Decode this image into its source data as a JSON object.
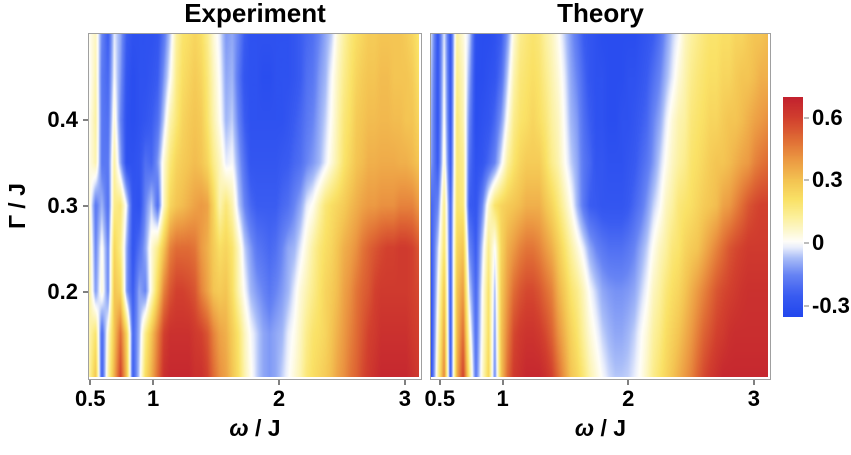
{
  "figure": {
    "background": "#ffffff",
    "frame_color": "#a0a0a0",
    "tick_color": "#808080",
    "text_color": "#000000"
  },
  "labels": {
    "y": {
      "symbol": "Γ",
      "divider": " / ",
      "unit": "J"
    },
    "x": {
      "symbol": "ω",
      "divider": " / ",
      "unit": "J"
    }
  },
  "chart_data": [
    {
      "type": "heatmap",
      "title": "Experiment",
      "xlabel": "ω / J",
      "ylabel": "Γ / J",
      "x_range": [
        0.49,
        3.12
      ],
      "y_range": [
        0.1,
        0.5
      ],
      "x_ticks": {
        "values": [
          0.5,
          1,
          2,
          3
        ],
        "labels": [
          "0.5",
          "1",
          "2",
          "3"
        ]
      },
      "y_ticks": {
        "values": [
          0.4,
          0.3,
          0.2
        ],
        "labels": [
          "0.4",
          "0.3",
          "0.2"
        ]
      },
      "rows_gamma": [
        0.5,
        0.45,
        0.4,
        0.35,
        0.3,
        0.25,
        0.2,
        0.15,
        0.1
      ],
      "values": [
        [
          0.02,
          0.08,
          -0.15,
          -0.25,
          -0.02,
          -0.1,
          -0.25,
          -0.3,
          -0.3,
          -0.3,
          -0.3,
          -0.28,
          -0.18,
          -0.05,
          0.12,
          0.2,
          0.22,
          0.25,
          0.22,
          0.15,
          0.05,
          -0.02,
          -0.12,
          -0.1,
          -0.15,
          -0.25,
          -0.3,
          -0.3,
          -0.3,
          -0.3,
          -0.3,
          -0.3,
          -0.3,
          -0.28,
          -0.25,
          -0.22,
          -0.2,
          -0.15,
          -0.1,
          -0.05,
          0.05,
          0.12,
          0.18,
          0.22,
          0.25,
          0.28,
          0.28,
          0.3,
          0.3,
          0.3,
          0.3,
          0.28,
          0.25,
          0.2
        ],
        [
          0.0,
          0.1,
          -0.18,
          -0.22,
          0.0,
          -0.12,
          -0.28,
          -0.32,
          -0.3,
          -0.3,
          -0.28,
          -0.25,
          -0.12,
          0.0,
          0.15,
          0.22,
          0.25,
          0.28,
          0.25,
          0.18,
          0.08,
          0.0,
          -0.1,
          -0.08,
          -0.18,
          -0.28,
          -0.3,
          -0.3,
          -0.32,
          -0.32,
          -0.3,
          -0.3,
          -0.3,
          -0.28,
          -0.25,
          -0.2,
          -0.18,
          -0.12,
          -0.08,
          0.0,
          0.08,
          0.15,
          0.2,
          0.25,
          0.28,
          0.3,
          0.3,
          0.32,
          0.32,
          0.3,
          0.3,
          0.3,
          0.28,
          0.22
        ],
        [
          0.02,
          0.12,
          -0.18,
          -0.2,
          0.05,
          -0.15,
          -0.3,
          -0.32,
          -0.3,
          -0.28,
          -0.25,
          -0.2,
          -0.05,
          0.1,
          0.18,
          0.25,
          0.28,
          0.3,
          0.28,
          0.2,
          0.1,
          0.02,
          -0.08,
          -0.05,
          -0.15,
          -0.25,
          -0.3,
          -0.3,
          -0.3,
          -0.3,
          -0.3,
          -0.3,
          -0.28,
          -0.25,
          -0.22,
          -0.18,
          -0.15,
          -0.1,
          -0.05,
          0.02,
          0.1,
          0.18,
          0.22,
          0.28,
          0.3,
          0.32,
          0.32,
          0.33,
          0.33,
          0.32,
          0.32,
          0.3,
          0.3,
          0.25
        ],
        [
          0.03,
          0.1,
          -0.18,
          -0.18,
          0.12,
          -0.1,
          -0.3,
          -0.3,
          -0.28,
          -0.2,
          -0.22,
          -0.12,
          0.05,
          0.18,
          0.25,
          0.28,
          0.3,
          0.32,
          0.3,
          0.25,
          0.15,
          0.08,
          -0.02,
          0.0,
          -0.1,
          -0.2,
          -0.28,
          -0.28,
          -0.28,
          -0.28,
          -0.28,
          -0.26,
          -0.25,
          -0.22,
          -0.2,
          -0.15,
          -0.12,
          -0.08,
          -0.02,
          0.05,
          0.12,
          0.2,
          0.25,
          0.3,
          0.32,
          0.35,
          0.35,
          0.36,
          0.36,
          0.36,
          0.35,
          0.35,
          0.33,
          0.3
        ],
        [
          0.05,
          -0.18,
          -0.08,
          -0.2,
          0.15,
          0.18,
          -0.02,
          -0.28,
          -0.3,
          -0.15,
          -0.05,
          -0.2,
          0.08,
          0.25,
          0.3,
          0.32,
          0.35,
          0.38,
          0.4,
          0.38,
          0.25,
          0.1,
          0.18,
          0.1,
          -0.05,
          -0.15,
          -0.22,
          -0.25,
          -0.25,
          -0.25,
          -0.25,
          -0.22,
          -0.2,
          -0.15,
          -0.1,
          -0.02,
          0.02,
          0.1,
          0.18,
          0.22,
          0.25,
          0.28,
          0.32,
          0.35,
          0.38,
          0.4,
          0.4,
          0.42,
          0.42,
          0.42,
          0.45,
          0.45,
          0.45,
          0.4
        ],
        [
          0.1,
          -0.15,
          0.02,
          -0.15,
          0.25,
          0.15,
          -0.1,
          -0.28,
          -0.2,
          -0.1,
          0.05,
          0.15,
          0.3,
          0.45,
          0.5,
          0.5,
          0.5,
          0.48,
          0.4,
          0.35,
          0.28,
          0.22,
          0.25,
          0.2,
          0.08,
          -0.05,
          -0.12,
          -0.18,
          -0.2,
          -0.22,
          -0.2,
          -0.15,
          -0.1,
          -0.08,
          -0.02,
          0.05,
          0.12,
          0.18,
          0.22,
          0.25,
          0.3,
          0.35,
          0.38,
          0.42,
          0.48,
          0.52,
          0.55,
          0.58,
          0.6,
          0.6,
          0.62,
          0.62,
          0.6,
          0.55
        ],
        [
          0.12,
          -0.12,
          0.05,
          -0.15,
          0.3,
          0.25,
          -0.12,
          -0.25,
          -0.1,
          -0.15,
          0.05,
          0.25,
          0.45,
          0.55,
          0.6,
          0.6,
          0.58,
          0.55,
          0.45,
          0.38,
          0.3,
          0.28,
          0.3,
          0.22,
          0.1,
          0.0,
          -0.08,
          -0.12,
          -0.15,
          -0.18,
          -0.15,
          -0.12,
          -0.08,
          -0.02,
          0.05,
          0.1,
          0.15,
          0.2,
          0.25,
          0.28,
          0.32,
          0.38,
          0.42,
          0.48,
          0.52,
          0.55,
          0.6,
          0.62,
          0.62,
          0.62,
          0.62,
          0.62,
          0.6,
          0.58
        ],
        [
          0.1,
          0.2,
          -0.22,
          0.05,
          0.3,
          0.5,
          0.25,
          -0.22,
          -0.08,
          0.15,
          0.3,
          0.45,
          0.6,
          0.65,
          0.65,
          0.65,
          0.65,
          0.62,
          0.6,
          0.55,
          0.45,
          0.38,
          0.35,
          0.28,
          0.2,
          0.08,
          0.0,
          -0.05,
          -0.1,
          -0.12,
          -0.1,
          -0.08,
          -0.02,
          0.02,
          0.08,
          0.15,
          0.2,
          0.22,
          0.25,
          0.3,
          0.35,
          0.4,
          0.45,
          0.5,
          0.55,
          0.6,
          0.62,
          0.65,
          0.65,
          0.65,
          0.65,
          0.65,
          0.62,
          0.6
        ],
        [
          0.12,
          0.3,
          -0.25,
          0.1,
          0.35,
          0.6,
          0.3,
          -0.25,
          -0.05,
          0.22,
          0.35,
          0.5,
          0.65,
          0.68,
          0.68,
          0.68,
          0.68,
          0.65,
          0.65,
          0.6,
          0.5,
          0.42,
          0.38,
          0.3,
          0.22,
          0.1,
          0.02,
          -0.05,
          -0.1,
          -0.12,
          -0.1,
          -0.05,
          0.0,
          0.05,
          0.1,
          0.18,
          0.22,
          0.25,
          0.28,
          0.32,
          0.38,
          0.42,
          0.48,
          0.52,
          0.58,
          0.62,
          0.65,
          0.68,
          0.68,
          0.68,
          0.68,
          0.68,
          0.65,
          0.62
        ]
      ]
    },
    {
      "type": "heatmap",
      "title": "Theory",
      "xlabel": "ω / J",
      "ylabel": "",
      "x_range": [
        0.43,
        3.12
      ],
      "y_range": [
        0.1,
        0.5
      ],
      "x_ticks": {
        "values": [
          0.5,
          1,
          2,
          3
        ],
        "labels": [
          "0.5",
          "1",
          "2",
          "3"
        ]
      },
      "rows_gamma": [
        0.5,
        0.45,
        0.4,
        0.35,
        0.3,
        0.25,
        0.2,
        0.15,
        0.1
      ],
      "values": [
        [
          -0.05,
          -0.28,
          -0.02,
          -0.28,
          0.12,
          0.05,
          -0.05,
          -0.3,
          -0.32,
          -0.32,
          -0.3,
          -0.25,
          -0.12,
          0.05,
          0.15,
          0.18,
          0.2,
          0.18,
          0.12,
          0.08,
          0.02,
          -0.05,
          -0.12,
          -0.18,
          -0.25,
          -0.28,
          -0.3,
          -0.32,
          -0.32,
          -0.32,
          -0.32,
          -0.32,
          -0.32,
          -0.3,
          -0.28,
          -0.25,
          -0.2,
          -0.12,
          -0.05,
          0.0,
          0.08,
          0.12,
          0.15,
          0.18,
          0.2,
          0.2,
          0.22,
          0.22,
          0.25,
          0.25,
          0.28,
          0.3,
          0.3,
          0.32
        ],
        [
          -0.08,
          -0.28,
          0.0,
          -0.28,
          0.15,
          0.08,
          -0.1,
          -0.32,
          -0.32,
          -0.3,
          -0.28,
          -0.2,
          -0.05,
          0.1,
          0.18,
          0.2,
          0.22,
          0.2,
          0.15,
          0.1,
          0.05,
          -0.02,
          -0.1,
          -0.15,
          -0.22,
          -0.28,
          -0.3,
          -0.3,
          -0.32,
          -0.32,
          -0.32,
          -0.3,
          -0.3,
          -0.28,
          -0.25,
          -0.2,
          -0.15,
          -0.08,
          -0.02,
          0.05,
          0.1,
          0.15,
          0.18,
          0.2,
          0.22,
          0.22,
          0.25,
          0.25,
          0.28,
          0.3,
          0.3,
          0.32,
          0.35,
          0.35
        ],
        [
          -0.1,
          -0.28,
          0.02,
          -0.28,
          0.18,
          0.1,
          -0.15,
          -0.32,
          -0.3,
          -0.28,
          -0.22,
          -0.12,
          0.02,
          0.15,
          0.2,
          0.22,
          0.25,
          0.22,
          0.18,
          0.12,
          0.08,
          0.0,
          -0.08,
          -0.12,
          -0.2,
          -0.25,
          -0.3,
          -0.3,
          -0.32,
          -0.32,
          -0.3,
          -0.3,
          -0.28,
          -0.25,
          -0.22,
          -0.15,
          -0.1,
          -0.02,
          0.05,
          0.1,
          0.12,
          0.18,
          0.2,
          0.22,
          0.25,
          0.25,
          0.28,
          0.3,
          0.3,
          0.32,
          0.35,
          0.38,
          0.4,
          0.42
        ],
        [
          -0.12,
          -0.26,
          0.05,
          -0.26,
          0.18,
          0.15,
          -0.2,
          -0.3,
          -0.28,
          -0.22,
          -0.15,
          -0.02,
          0.12,
          0.2,
          0.25,
          0.28,
          0.28,
          0.28,
          0.22,
          0.15,
          0.1,
          0.02,
          -0.05,
          -0.1,
          -0.18,
          -0.22,
          -0.28,
          -0.28,
          -0.3,
          -0.3,
          -0.3,
          -0.28,
          -0.26,
          -0.22,
          -0.18,
          -0.12,
          -0.05,
          0.02,
          0.08,
          0.12,
          0.15,
          0.2,
          0.22,
          0.25,
          0.28,
          0.3,
          0.3,
          0.32,
          0.35,
          0.38,
          0.4,
          0.45,
          0.48,
          0.5
        ],
        [
          -0.22,
          -0.15,
          0.15,
          -0.22,
          0.2,
          0.18,
          -0.25,
          -0.28,
          -0.15,
          0.05,
          0.2,
          0.25,
          0.28,
          0.3,
          0.32,
          0.35,
          0.35,
          0.35,
          0.3,
          0.25,
          0.18,
          0.1,
          0.02,
          -0.08,
          -0.18,
          -0.25,
          -0.26,
          -0.28,
          -0.28,
          -0.28,
          -0.28,
          -0.26,
          -0.22,
          -0.18,
          -0.12,
          -0.05,
          0.0,
          0.08,
          0.12,
          0.18,
          0.2,
          0.22,
          0.25,
          0.28,
          0.3,
          0.32,
          0.38,
          0.4,
          0.45,
          0.5,
          0.55,
          0.58,
          0.6,
          0.6
        ],
        [
          -0.25,
          -0.05,
          0.2,
          -0.22,
          0.25,
          0.3,
          -0.15,
          -0.25,
          -0.05,
          0.15,
          0.0,
          0.25,
          0.35,
          0.4,
          0.45,
          0.48,
          0.48,
          0.45,
          0.4,
          0.35,
          0.28,
          0.2,
          0.12,
          0.05,
          -0.02,
          -0.1,
          -0.15,
          -0.18,
          -0.2,
          -0.2,
          -0.2,
          -0.18,
          -0.15,
          -0.1,
          -0.05,
          0.02,
          0.08,
          0.12,
          0.18,
          0.2,
          0.25,
          0.28,
          0.3,
          0.35,
          0.4,
          0.45,
          0.5,
          0.55,
          0.58,
          0.6,
          0.62,
          0.62,
          0.62,
          0.62
        ],
        [
          -0.27,
          0.0,
          0.3,
          -0.24,
          0.3,
          0.4,
          -0.05,
          -0.22,
          0.0,
          0.2,
          -0.08,
          0.28,
          0.4,
          0.5,
          0.55,
          0.58,
          0.58,
          0.55,
          0.5,
          0.45,
          0.35,
          0.28,
          0.2,
          0.15,
          0.08,
          0.0,
          -0.05,
          -0.1,
          -0.12,
          -0.13,
          -0.13,
          -0.12,
          -0.1,
          -0.05,
          0.0,
          0.08,
          0.12,
          0.18,
          0.22,
          0.25,
          0.3,
          0.35,
          0.4,
          0.45,
          0.5,
          0.55,
          0.58,
          0.6,
          0.62,
          0.64,
          0.65,
          0.65,
          0.65,
          0.65
        ],
        [
          -0.28,
          0.05,
          0.38,
          -0.25,
          0.32,
          0.5,
          0.05,
          -0.2,
          0.02,
          0.22,
          -0.12,
          0.3,
          0.45,
          0.58,
          0.62,
          0.64,
          0.64,
          0.62,
          0.58,
          0.52,
          0.42,
          0.34,
          0.26,
          0.2,
          0.12,
          0.05,
          0.0,
          -0.05,
          -0.08,
          -0.1,
          -0.1,
          -0.08,
          -0.05,
          0.0,
          0.05,
          0.12,
          0.16,
          0.22,
          0.26,
          0.3,
          0.35,
          0.4,
          0.46,
          0.52,
          0.56,
          0.6,
          0.62,
          0.65,
          0.66,
          0.66,
          0.66,
          0.66,
          0.66,
          0.66
        ],
        [
          -0.28,
          0.1,
          0.45,
          -0.25,
          0.35,
          0.6,
          0.15,
          -0.18,
          0.05,
          0.25,
          -0.15,
          0.3,
          0.5,
          0.62,
          0.65,
          0.68,
          0.68,
          0.68,
          0.65,
          0.6,
          0.5,
          0.4,
          0.3,
          0.25,
          0.18,
          0.1,
          0.05,
          0.0,
          -0.04,
          -0.06,
          -0.06,
          -0.05,
          -0.02,
          0.02,
          0.08,
          0.15,
          0.2,
          0.25,
          0.3,
          0.35,
          0.4,
          0.45,
          0.52,
          0.58,
          0.62,
          0.65,
          0.68,
          0.68,
          0.68,
          0.68,
          0.68,
          0.68,
          0.68,
          0.68
        ]
      ]
    },
    {
      "type": "colorbar",
      "position": "right",
      "range": [
        -0.35,
        0.7
      ],
      "ticks": [
        0.6,
        0.3,
        0,
        -0.3
      ],
      "tick_labels": [
        "0.6",
        "0.3",
        "0",
        "-0.3"
      ],
      "colormap": [
        [
          -0.35,
          "#2347ee"
        ],
        [
          -0.25,
          "#3a5cf1"
        ],
        [
          -0.15,
          "#6784f4"
        ],
        [
          -0.07,
          "#a9bdf8"
        ],
        [
          -0.02,
          "#e8edfc"
        ],
        [
          0.01,
          "#fffef8"
        ],
        [
          0.06,
          "#fdf8cf"
        ],
        [
          0.13,
          "#fcf099"
        ],
        [
          0.21,
          "#fae267"
        ],
        [
          0.3,
          "#f4c553"
        ],
        [
          0.4,
          "#ec9a43"
        ],
        [
          0.5,
          "#e06c35"
        ],
        [
          0.6,
          "#d2402e"
        ],
        [
          0.7,
          "#c3222f"
        ]
      ]
    }
  ]
}
